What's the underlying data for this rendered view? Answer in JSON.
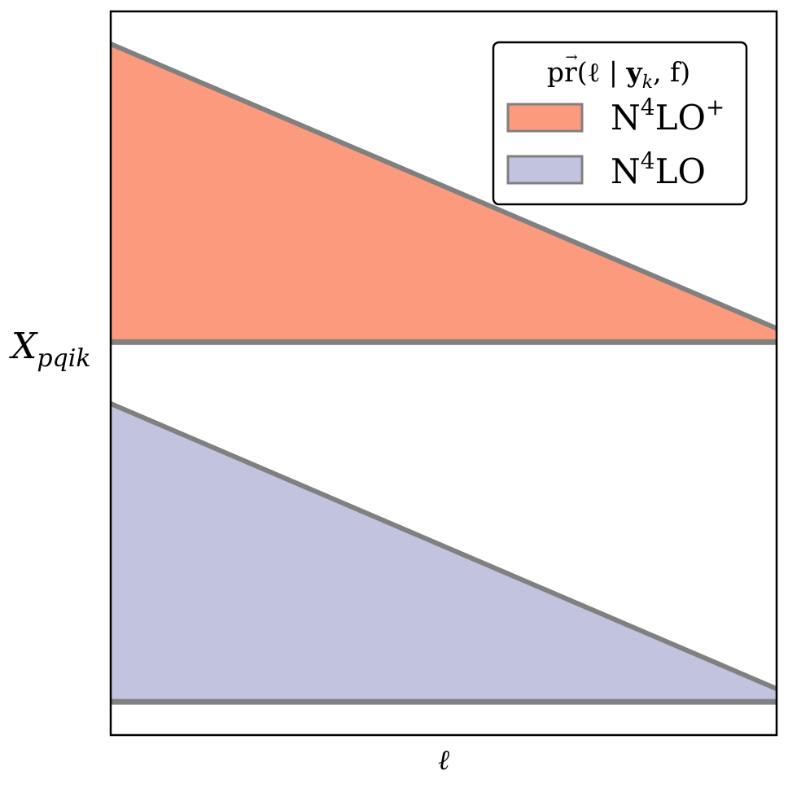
{
  "chart_data": {
    "type": "area",
    "title": "",
    "xlabel": "ℓ",
    "ylabel": "X",
    "ylabel_subscript": "pqik",
    "xlim": [
      0,
      1
    ],
    "ylim": [
      0,
      1
    ],
    "grid": false,
    "ticks": false,
    "legend": {
      "placement": "top-right",
      "title_prefix": "pr(ℓ | ",
      "title_y": "y",
      "title_y_sub": "k",
      "title_suffix": ", f)",
      "entries": [
        {
          "base": "N",
          "sup": "4",
          "rest": "LO",
          "sup2": "+"
        },
        {
          "base": "N",
          "sup": "4",
          "rest": "LO",
          "sup2": ""
        }
      ]
    },
    "series": [
      {
        "name": "N4LO+",
        "color": "#fc9a7e",
        "edge": "#808080",
        "baseline": 0.543,
        "x": [
          0,
          1
        ],
        "y": [
          0.955,
          0.562
        ]
      },
      {
        "name": "N4LO",
        "color": "#c2c3df",
        "edge": "#808080",
        "baseline": 0.046,
        "x": [
          0,
          1
        ],
        "y": [
          0.458,
          0.064
        ]
      }
    ]
  }
}
